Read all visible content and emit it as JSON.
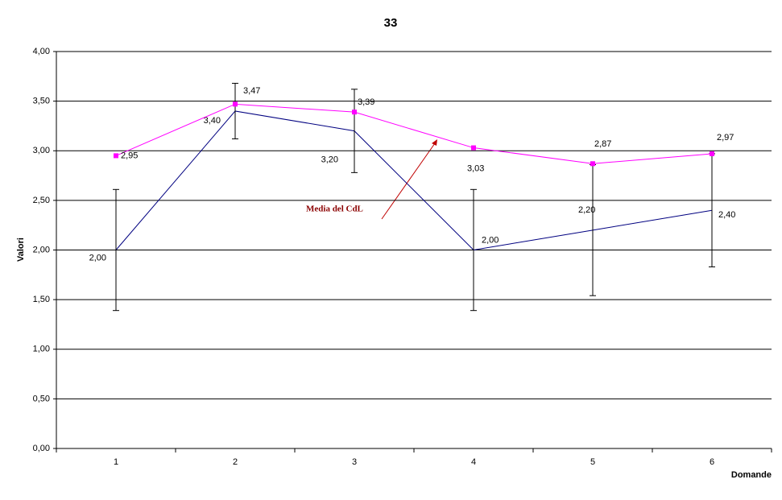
{
  "chart_data": {
    "type": "line",
    "title": "33",
    "x_label": "Domande",
    "y_label": "Valori",
    "categories": [
      "1",
      "2",
      "3",
      "4",
      "5",
      "6"
    ],
    "series": [
      {
        "name": "Media",
        "color": "#000080",
        "values": [
          2.0,
          3.4,
          3.2,
          2.0,
          2.2,
          2.4
        ],
        "errors": [
          0.61,
          0.28,
          0.42,
          0.61,
          0.66,
          0.57
        ],
        "value_labels": [
          "2,00",
          "3,40",
          "3,20",
          "2,00",
          "2,20",
          "2,40"
        ]
      },
      {
        "name": "Media del CdL",
        "color": "#ff00ff",
        "values": [
          2.95,
          3.47,
          3.39,
          3.03,
          2.87,
          2.97
        ],
        "value_labels": [
          "2,95",
          "3,47",
          "3,39",
          "3,03",
          "2,87",
          "2,97"
        ]
      }
    ],
    "annotation": "Media del CdL",
    "ylim": [
      0,
      4
    ],
    "yticks": [
      {
        "value": 0,
        "label": "0,00"
      },
      {
        "value": 0.5,
        "label": "0,50"
      },
      {
        "value": 1,
        "label": "1,00"
      },
      {
        "value": 1.5,
        "label": "1,50"
      },
      {
        "value": 2,
        "label": "2,00"
      },
      {
        "value": 2.5,
        "label": "2,50"
      },
      {
        "value": 3,
        "label": "3,00"
      },
      {
        "value": 3.5,
        "label": "3,50"
      },
      {
        "value": 4,
        "label": "4,00"
      }
    ],
    "grid": true
  }
}
